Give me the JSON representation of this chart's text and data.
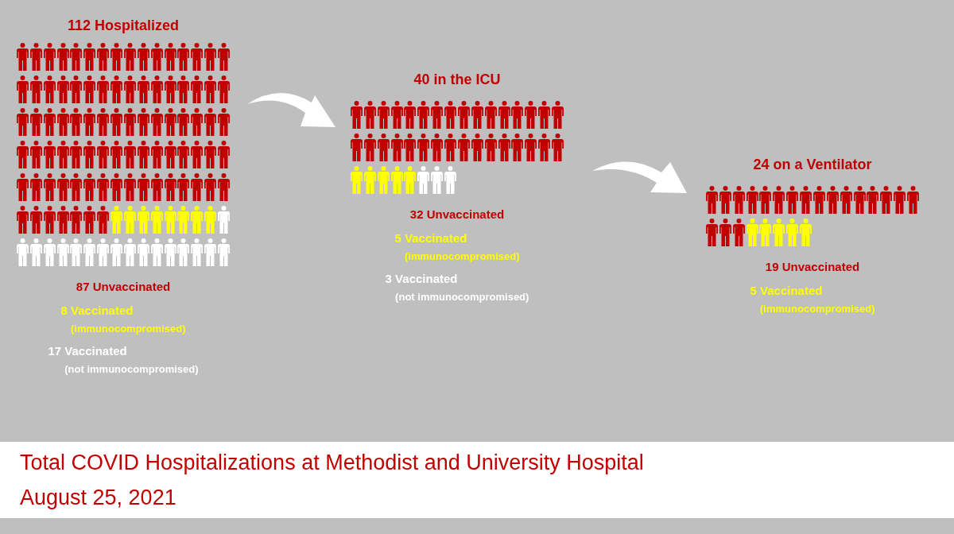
{
  "chart_data": [
    {
      "type": "other",
      "title": "112 Hospitalized",
      "categories": [
        "Unvaccinated",
        "Vaccinated\n(immunocompromised)",
        "Vaccinated\n(not immunocompromised)"
      ],
      "values": [
        87,
        8,
        17
      ],
      "colors": [
        "#c00000",
        "#ffff00",
        "#ffffff"
      ],
      "data_labels": true
    },
    {
      "type": "other",
      "title": "40 in the ICU",
      "categories": [
        "Unvaccinated",
        "Vaccinated\n(immunocompromised)",
        "Vaccinated\n(not immunocompromised)"
      ],
      "values": [
        32,
        5,
        3
      ],
      "colors": [
        "#c00000",
        "#ffff00",
        "#ffffff"
      ],
      "data_labels": true
    },
    {
      "type": "other",
      "title": "24 on a Ventilator",
      "categories": [
        "Unvaccinated",
        "Vaccinated\n(immunocompromised)"
      ],
      "values": [
        19,
        5
      ],
      "colors": [
        "#c00000",
        "#ffff00"
      ],
      "data_labels": true
    },
    {
      "type": "other",
      "title": "Total COVID Hospitalizations at Methodist and University Hospital",
      "subtitle": "August 25, 2021"
    }
  ]
}
